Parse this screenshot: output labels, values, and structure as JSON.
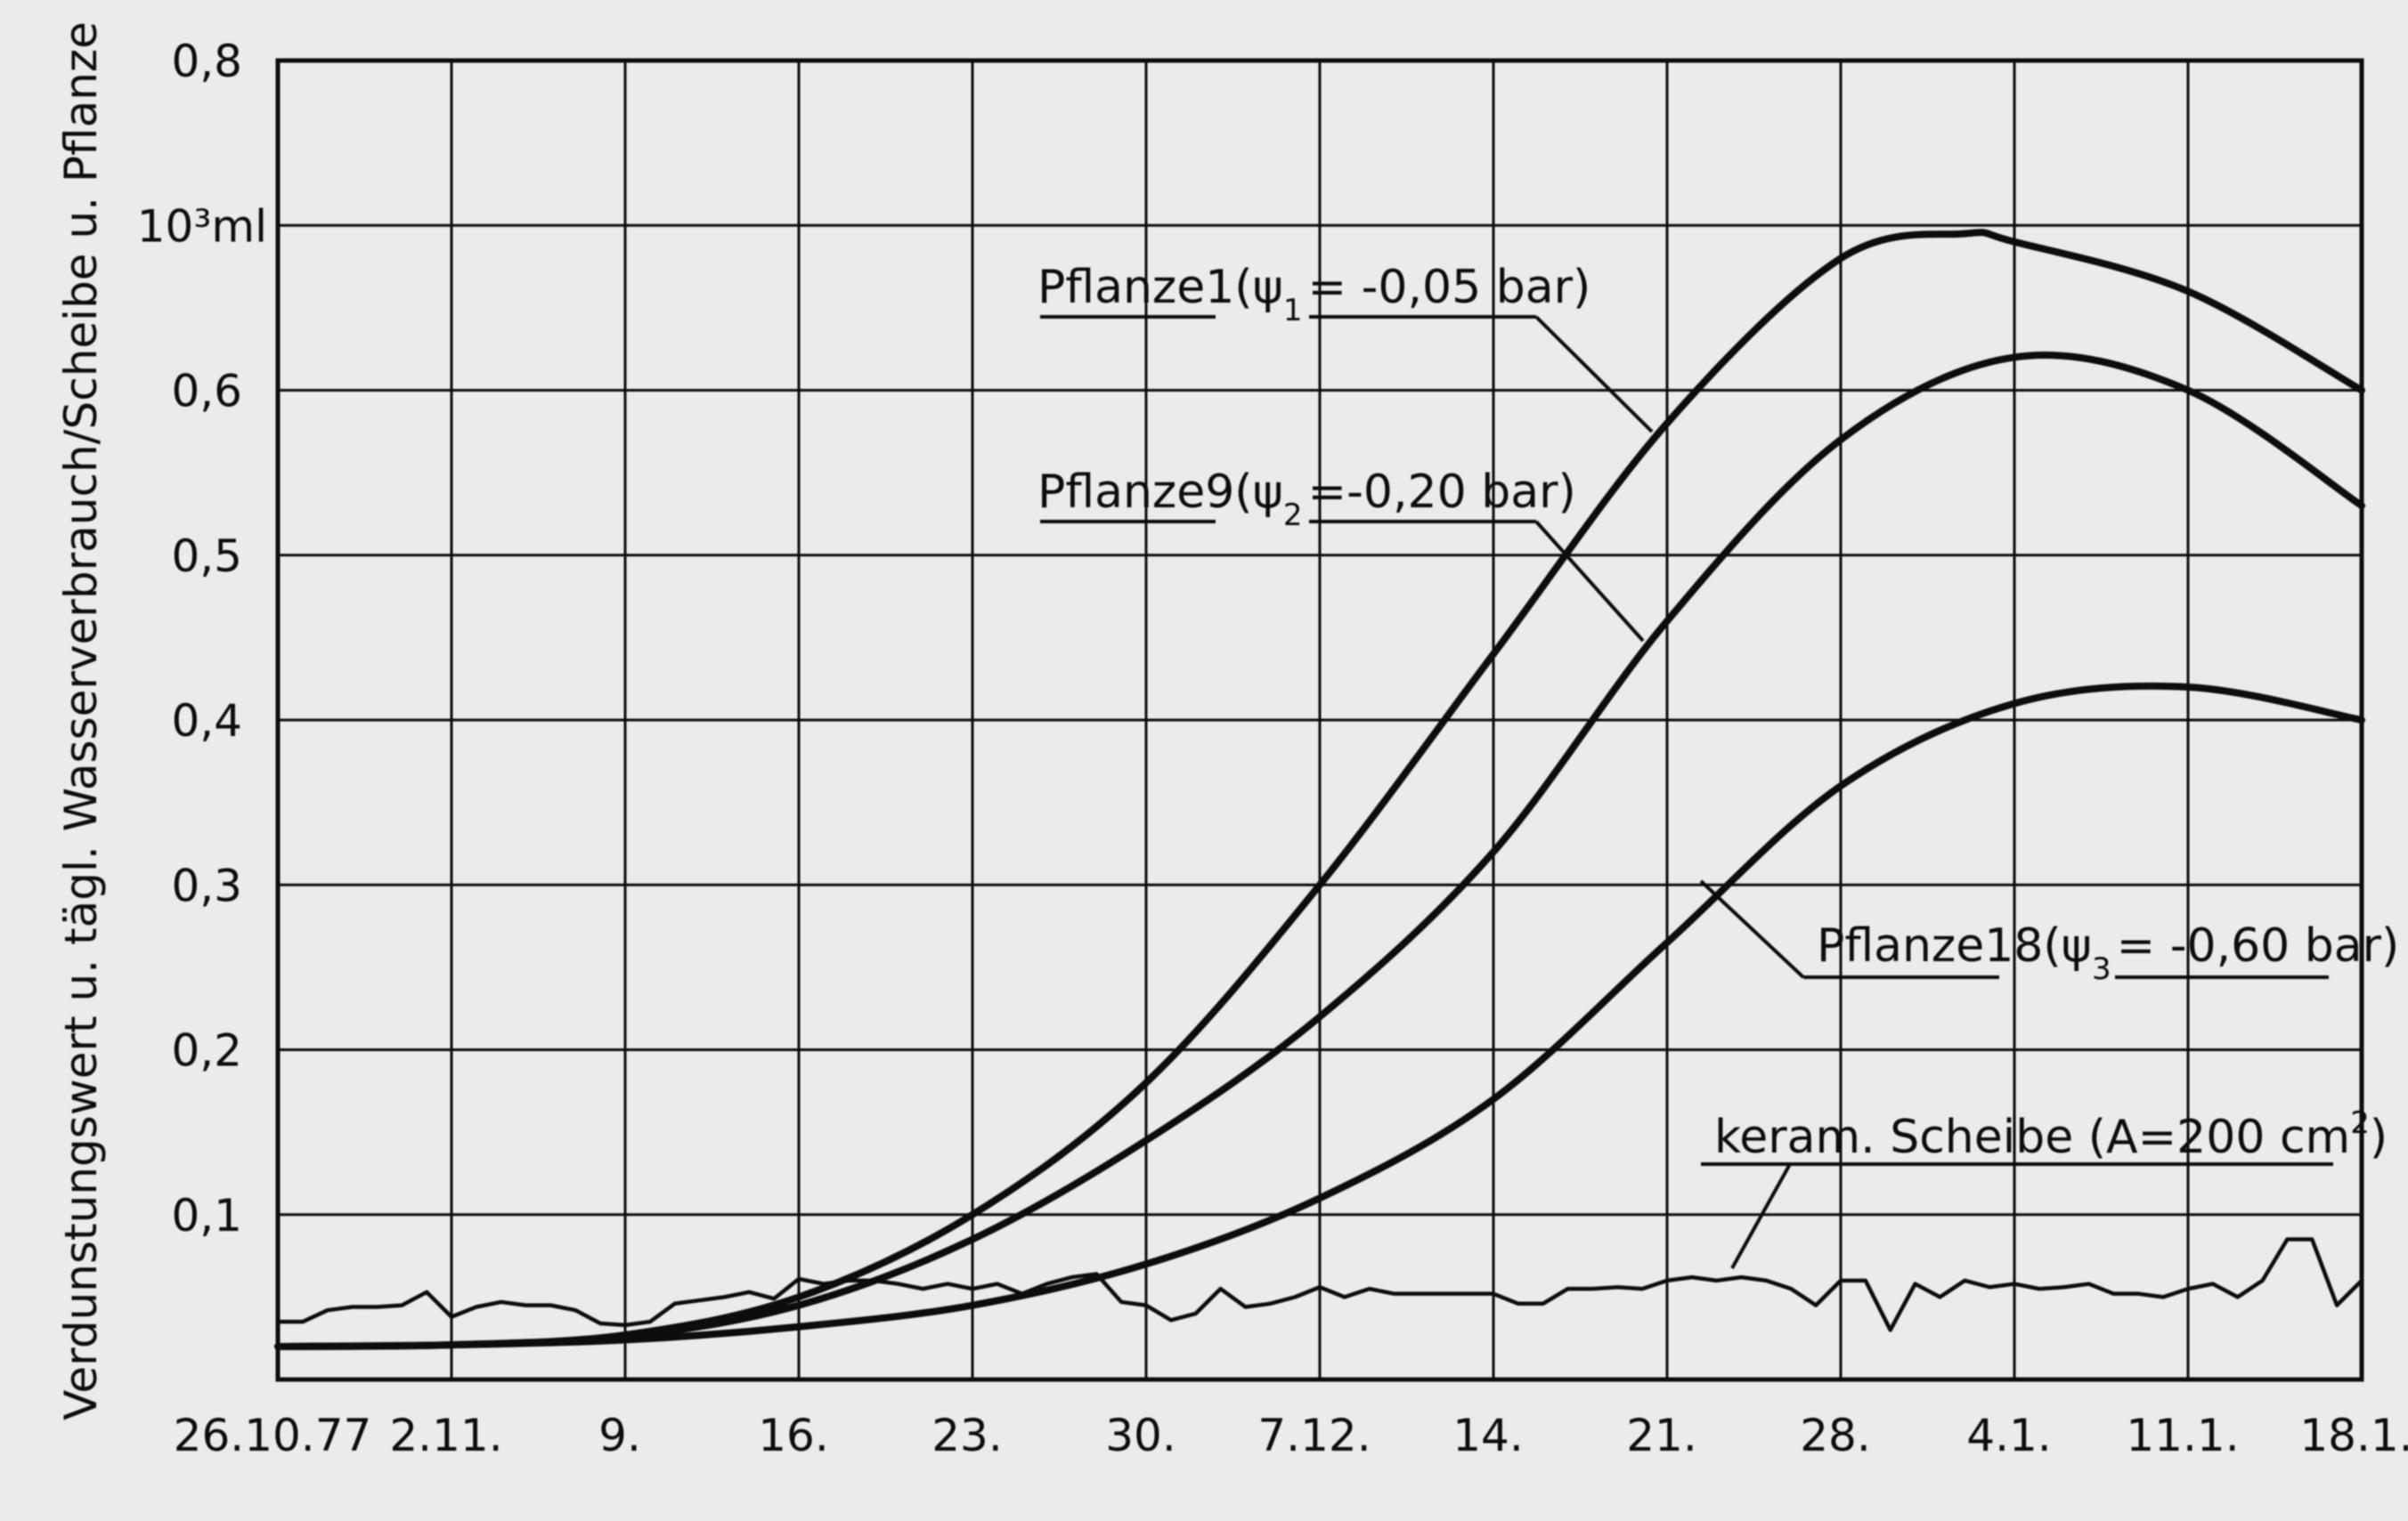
{
  "chart_data": {
    "type": "line",
    "ylabel": "Verdunstungswert u. tägl. Wasserverbrauch/Scheibe u. Pflanze",
    "yunit": "10³ml",
    "ylim": [
      0,
      0.8
    ],
    "yticks": [
      "0,1",
      "0,2",
      "0,3",
      "0,4",
      "0,5",
      "0,6",
      "0,8"
    ],
    "xlim": [
      0,
      84
    ],
    "x_ticks": [
      {
        "x": 0,
        "label": "26.10.77"
      },
      {
        "x": 7,
        "label": "2.11."
      },
      {
        "x": 14,
        "label": "9."
      },
      {
        "x": 21,
        "label": "16."
      },
      {
        "x": 28,
        "label": "23."
      },
      {
        "x": 35,
        "label": "30."
      },
      {
        "x": 42,
        "label": "7.12."
      },
      {
        "x": 49,
        "label": "14."
      },
      {
        "x": 56,
        "label": "21."
      },
      {
        "x": 63,
        "label": "28."
      },
      {
        "x": 70,
        "label": "4.1."
      },
      {
        "x": 77,
        "label": "11.1."
      },
      {
        "x": 84,
        "label": "18.1."
      }
    ],
    "series": [
      {
        "name": "Pflanze1",
        "label_prefix": "Pflanze1(ψ",
        "subscript": "1",
        "label_value": "= -0,05 bar)",
        "x": [
          0,
          7,
          14,
          21,
          28,
          35,
          42,
          49,
          56,
          63,
          68,
          70,
          77,
          84
        ],
        "y": [
          0.02,
          0.021,
          0.027,
          0.05,
          0.1,
          0.18,
          0.3,
          0.44,
          0.58,
          0.68,
          0.695,
          0.69,
          0.66,
          0.6
        ]
      },
      {
        "name": "Pflanze9",
        "label_prefix": "Pflanze9(ψ",
        "subscript": "2",
        "label_value": "=-0,20 bar)",
        "x": [
          0,
          7,
          14,
          21,
          28,
          35,
          42,
          49,
          56,
          63,
          70,
          77,
          84
        ],
        "y": [
          0.02,
          0.021,
          0.026,
          0.045,
          0.085,
          0.145,
          0.22,
          0.32,
          0.46,
          0.57,
          0.62,
          0.6,
          0.53
        ]
      },
      {
        "name": "Pflanze18",
        "label_prefix": "Pflanze18(ψ",
        "subscript": "3",
        "label_value": "= -0,60 bar)",
        "x": [
          0,
          7,
          14,
          21,
          28,
          35,
          42,
          49,
          56,
          63,
          70,
          77,
          84
        ],
        "y": [
          0.02,
          0.021,
          0.024,
          0.032,
          0.045,
          0.07,
          0.11,
          0.17,
          0.265,
          0.36,
          0.41,
          0.42,
          0.4
        ]
      },
      {
        "name": "keram. Scheibe",
        "label_prefix": "keram. Scheibe (A=200 cm",
        "superscript": "2",
        "label_value": ")",
        "x": [
          0,
          1,
          2,
          3,
          4,
          5,
          6,
          7,
          8,
          9,
          10,
          11,
          12,
          13,
          14,
          15,
          16,
          17,
          18,
          19,
          20,
          21,
          22,
          23,
          24,
          25,
          26,
          27,
          28,
          29,
          30,
          31,
          32,
          33,
          34,
          35,
          36,
          37,
          38,
          39,
          40,
          41,
          42,
          43,
          44,
          45,
          46,
          47,
          48,
          49,
          50,
          51,
          52,
          53,
          54,
          55,
          56,
          57,
          58,
          59,
          60,
          61,
          62,
          63,
          64,
          65,
          66,
          67,
          68,
          69,
          70,
          71,
          72,
          73,
          74,
          75,
          76,
          77,
          78,
          79,
          80,
          81,
          82,
          83,
          84
        ],
        "y": [
          0.035,
          0.035,
          0.042,
          0.044,
          0.044,
          0.045,
          0.053,
          0.038,
          0.044,
          0.047,
          0.045,
          0.045,
          0.042,
          0.034,
          0.033,
          0.035,
          0.046,
          0.048,
          0.05,
          0.053,
          0.049,
          0.061,
          0.058,
          0.06,
          0.06,
          0.058,
          0.055,
          0.058,
          0.055,
          0.058,
          0.052,
          0.058,
          0.062,
          0.064,
          0.047,
          0.045,
          0.036,
          0.04,
          0.055,
          0.044,
          0.046,
          0.05,
          0.056,
          0.05,
          0.055,
          0.052,
          0.052,
          0.052,
          0.052,
          0.052,
          0.046,
          0.046,
          0.055,
          0.055,
          0.056,
          0.055,
          0.06,
          0.062,
          0.06,
          0.062,
          0.06,
          0.055,
          0.045,
          0.06,
          0.06,
          0.03,
          0.058,
          0.05,
          0.06,
          0.056,
          0.058,
          0.055,
          0.056,
          0.058,
          0.052,
          0.052,
          0.05,
          0.055,
          0.058,
          0.05,
          0.06,
          0.085,
          0.085,
          0.045,
          0.06
        ]
      }
    ]
  }
}
